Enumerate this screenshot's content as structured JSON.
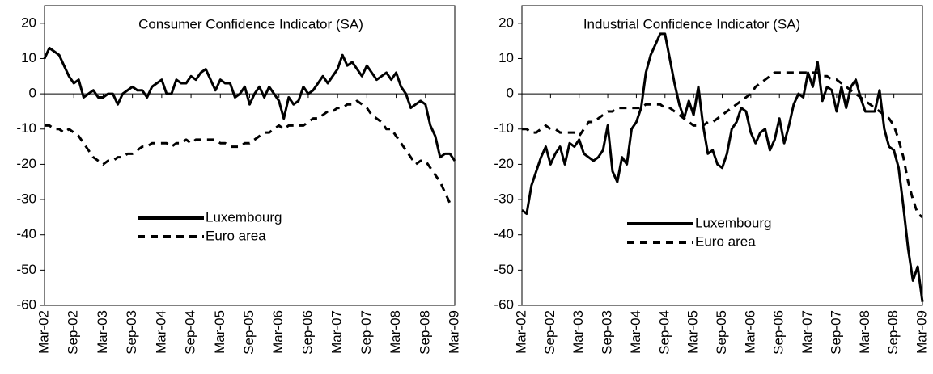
{
  "chart_data": [
    {
      "type": "line",
      "title": "Consumer Confidence Indicator (SA)",
      "categories": [
        "Mar-02",
        null,
        null,
        null,
        null,
        null,
        "Sep-02",
        null,
        null,
        null,
        null,
        null,
        "Mar-03",
        null,
        null,
        null,
        null,
        null,
        "Sep-03",
        null,
        null,
        null,
        null,
        null,
        "Mar-04",
        null,
        null,
        null,
        null,
        null,
        "Sep-04",
        null,
        null,
        null,
        null,
        null,
        "Mar-05",
        null,
        null,
        null,
        null,
        null,
        "Sep-05",
        null,
        null,
        null,
        null,
        null,
        "Mar-06",
        null,
        null,
        null,
        null,
        null,
        "Sep-06",
        null,
        null,
        null,
        null,
        null,
        "Mar-07",
        null,
        null,
        null,
        null,
        null,
        "Sep-07",
        null,
        null,
        null,
        null,
        null,
        "Mar-08",
        null,
        null,
        null,
        null,
        null,
        "Sep-08",
        null,
        null,
        null,
        null,
        null,
        "Mar-09"
      ],
      "series": [
        {
          "name": "Luxembourg",
          "color": "#000000",
          "line_style": "solid",
          "values": [
            10,
            13,
            12,
            11,
            8,
            5,
            3,
            4,
            -1,
            0,
            1,
            -1,
            -1,
            0,
            0,
            -3,
            0,
            1,
            2,
            1,
            1,
            -1,
            2,
            3,
            4,
            0,
            0,
            4,
            3,
            3,
            5,
            4,
            6,
            7,
            4,
            1,
            4,
            3,
            3,
            -1,
            0,
            2,
            -3,
            0,
            2,
            -1,
            2,
            0,
            -2,
            -7,
            -1,
            -3,
            -2,
            2,
            0,
            1,
            3,
            5,
            3,
            5,
            7,
            11,
            8,
            9,
            7,
            5,
            8,
            6,
            4,
            5,
            6,
            4,
            6,
            2,
            0,
            -4,
            -3,
            -2,
            -3,
            -9,
            -12,
            -18,
            -17,
            -17,
            -19
          ]
        },
        {
          "name": "Euro area",
          "color": "#000000",
          "line_style": "dashed",
          "values": [
            -9,
            -9,
            -10,
            -10,
            -11,
            -10,
            -11,
            -12,
            -14,
            -16,
            -18,
            -19,
            -20,
            -19,
            -19,
            -18,
            -18,
            -17,
            -17,
            -16,
            -15,
            -15,
            -14,
            -14,
            -14,
            -14,
            -15,
            -14,
            -14,
            -13,
            -14,
            -13,
            -13,
            -13,
            -13,
            -13,
            -14,
            -14,
            -15,
            -15,
            -15,
            -14,
            -14,
            -13,
            -12,
            -11,
            -11,
            -10,
            -9,
            -10,
            -9,
            -9,
            -9,
            -9,
            -8,
            -7,
            -7,
            -6,
            -5,
            -5,
            -4,
            -4,
            -3,
            -3,
            -2,
            -3,
            -4,
            -6,
            -7,
            -8,
            -10,
            -10,
            -12,
            -14,
            -16,
            -18,
            -20,
            -19,
            -19,
            -21,
            -23,
            -25,
            -28,
            -31,
            -31
          ]
        }
      ],
      "ylim": [
        -60,
        25
      ],
      "yticks": [
        -60,
        -50,
        -40,
        -30,
        -20,
        -10,
        0,
        10,
        20
      ]
    },
    {
      "type": "line",
      "title": "Industrial Confidence Indicator (SA)",
      "categories": [
        "Mar-02",
        null,
        null,
        null,
        null,
        null,
        "Sep-02",
        null,
        null,
        null,
        null,
        null,
        "Mar-03",
        null,
        null,
        null,
        null,
        null,
        "Sep-03",
        null,
        null,
        null,
        null,
        null,
        "Mar-04",
        null,
        null,
        null,
        null,
        null,
        "Sep-04",
        null,
        null,
        null,
        null,
        null,
        "Mar-05",
        null,
        null,
        null,
        null,
        null,
        "Sep-05",
        null,
        null,
        null,
        null,
        null,
        "Mar-06",
        null,
        null,
        null,
        null,
        null,
        "Sep-06",
        null,
        null,
        null,
        null,
        null,
        "Mar-07",
        null,
        null,
        null,
        null,
        null,
        "Sep-07",
        null,
        null,
        null,
        null,
        null,
        "Mar-08",
        null,
        null,
        null,
        null,
        null,
        "Sep-08",
        null,
        null,
        null,
        null,
        null,
        "Mar-09"
      ],
      "series": [
        {
          "name": "Luxembourg",
          "color": "#000000",
          "line_style": "solid",
          "values": [
            -33,
            -34,
            -26,
            -22,
            -18,
            -15,
            -20,
            -17,
            -15,
            -20,
            -14,
            -15,
            -13,
            -17,
            -18,
            -19,
            -18,
            -16,
            -9,
            -22,
            -25,
            -18,
            -20,
            -10,
            -8,
            -4,
            6,
            11,
            14,
            17,
            17,
            10,
            3,
            -3,
            -7,
            -2,
            -6,
            2,
            -9,
            -17,
            -16,
            -20,
            -21,
            -17,
            -10,
            -8,
            -4,
            -5,
            -11,
            -14,
            -11,
            -10,
            -16,
            -13,
            -7,
            -14,
            -9,
            -3,
            0,
            -1,
            6,
            2,
            9,
            -2,
            2,
            1,
            -5,
            2,
            -4,
            2,
            4,
            -1,
            -5,
            -5,
            -5,
            1,
            -10,
            -15,
            -16,
            -21,
            -32,
            -44,
            -53,
            -49,
            -59
          ]
        },
        {
          "name": "Euro area",
          "color": "#000000",
          "line_style": "dashed",
          "values": [
            -10,
            -10,
            -11,
            -11,
            -10,
            -9,
            -10,
            -10,
            -11,
            -11,
            -11,
            -11,
            -12,
            -10,
            -8,
            -8,
            -7,
            -6,
            -5,
            -5,
            -4,
            -4,
            -4,
            -4,
            -4,
            -4,
            -3,
            -3,
            -3,
            -3,
            -4,
            -4,
            -5,
            -6,
            -7,
            -8,
            -9,
            -9,
            -9,
            -8,
            -8,
            -7,
            -6,
            -5,
            -4,
            -3,
            -2,
            -1,
            0,
            2,
            3,
            4,
            5,
            6,
            6,
            6,
            6,
            6,
            6,
            6,
            6,
            6,
            6,
            5,
            5,
            4,
            4,
            3,
            2,
            1,
            0,
            -1,
            -2,
            -3,
            -4,
            -5,
            -6,
            -7,
            -9,
            -13,
            -18,
            -25,
            -30,
            -34,
            -35
          ]
        }
      ],
      "ylim": [
        -60,
        25
      ],
      "yticks": [
        -60,
        -50,
        -40,
        -30,
        -20,
        -10,
        0,
        10,
        20
      ]
    }
  ]
}
